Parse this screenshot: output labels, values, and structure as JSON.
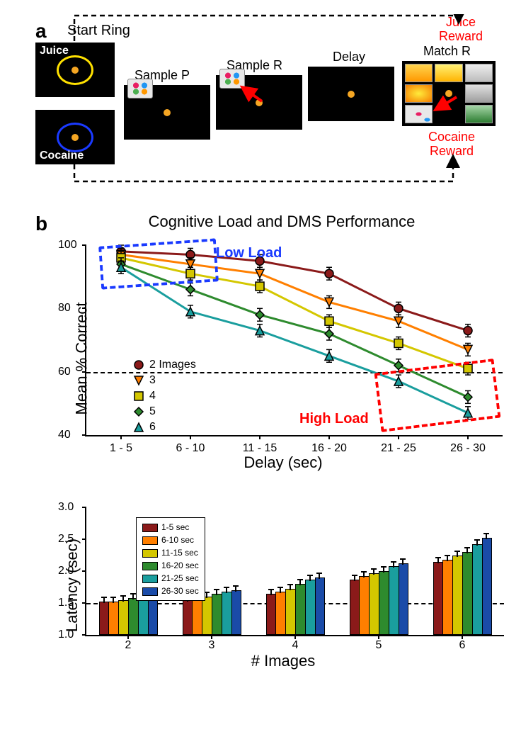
{
  "panelA": {
    "label": "a",
    "start_ring_label": "Start Ring",
    "juice_label": "Juice",
    "cocaine_label": "Cocaine",
    "sample_p_label": "Sample P",
    "sample_r_label": "Sample R",
    "delay_label": "Delay",
    "match_r_label": "Match R",
    "juice_reward": "Juice\nReward",
    "cocaine_reward": "Cocaine\nReward",
    "ring_colors": {
      "juice": "#ffe100",
      "cocaine": "#1a3aff"
    }
  },
  "panelB": {
    "label": "b",
    "title": "Cognitive Load and DMS Performance",
    "ylabel": "Mean % Correct",
    "xlabel": "Delay (sec)",
    "ylim": [
      40,
      100
    ],
    "yticks": [
      40,
      60,
      80,
      100
    ],
    "xticklabels": [
      "1 - 5",
      "6 - 10",
      "11 - 15",
      "16 - 20",
      "21 - 25",
      "26 - 30"
    ],
    "reference_line": 60,
    "series": [
      {
        "name": "2 Images",
        "short": "2 Images",
        "color": "#8b1a1a",
        "marker": "circle",
        "values": [
          98,
          97,
          95,
          91,
          80,
          73
        ]
      },
      {
        "name": "3",
        "short": "3",
        "color": "#ff7f00",
        "marker": "tridown",
        "values": [
          97,
          94,
          91,
          82,
          76,
          67
        ]
      },
      {
        "name": "4",
        "short": "4",
        "color": "#d4c700",
        "marker": "square",
        "values": [
          96,
          91,
          87,
          76,
          69,
          61
        ]
      },
      {
        "name": "5",
        "short": "5",
        "color": "#2e8b2e",
        "marker": "diamond",
        "values": [
          94,
          86,
          78,
          72,
          62,
          52
        ]
      },
      {
        "name": "6",
        "short": "6",
        "color": "#1a9e9e",
        "marker": "triangle",
        "values": [
          93,
          79,
          73,
          65,
          57,
          47
        ]
      }
    ],
    "low_load": {
      "label": "Low Load",
      "color": "#1a3aff"
    },
    "high_load": {
      "label": "High Load",
      "color": "#ff0000"
    },
    "error_bar_half": 2
  },
  "barChart": {
    "ylabel": "Latency (sec)",
    "xlabel": "# Images",
    "ylim": [
      1.0,
      3.0
    ],
    "yticks": [
      1.0,
      1.5,
      2.0,
      2.5,
      3.0
    ],
    "reference_line": 1.5,
    "xticks": [
      "2",
      "3",
      "4",
      "5",
      "6"
    ],
    "groups_labels": [
      "1-5 sec",
      "6-10 sec",
      "11-15 sec",
      "16-20 sec",
      "21-25 sec",
      "26-30 sec"
    ],
    "colors": [
      "#8b1a1a",
      "#ff7f00",
      "#d4c700",
      "#2e8b2e",
      "#1a9e9e",
      "#1a4ba8"
    ],
    "data": [
      [
        1.5,
        1.5,
        1.52,
        1.56,
        1.62,
        1.64
      ],
      [
        1.52,
        1.54,
        1.58,
        1.62,
        1.66,
        1.68
      ],
      [
        1.62,
        1.66,
        1.7,
        1.78,
        1.84,
        1.88
      ],
      [
        1.84,
        1.9,
        1.94,
        1.98,
        2.06,
        2.1
      ],
      [
        2.12,
        2.16,
        2.22,
        2.28,
        2.4,
        2.5
      ]
    ],
    "error": 0.1
  }
}
